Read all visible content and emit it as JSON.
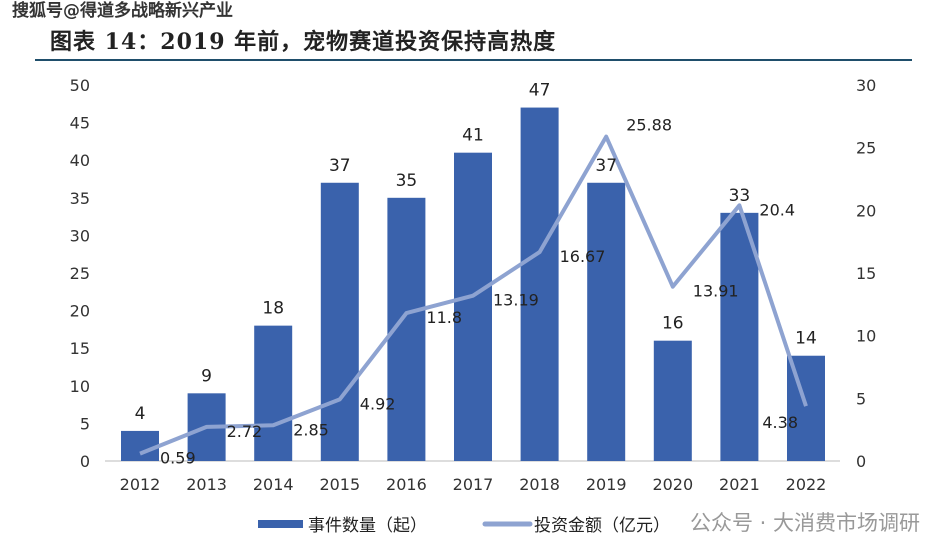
{
  "watermarks": {
    "top": "搜狐号@得道多战略新兴产业",
    "bottom": "公众号 · 大消费市场调研"
  },
  "chart_data": {
    "type": "bar+line",
    "title": "图表 14：2019 年前，宠物赛道投资保持高热度",
    "categories": [
      "2012",
      "2013",
      "2014",
      "2015",
      "2016",
      "2017",
      "2018",
      "2019",
      "2020",
      "2021",
      "2022"
    ],
    "series": [
      {
        "name": "事件数量（起）",
        "type": "bar",
        "axis": "left",
        "color": "#3a62ac",
        "values": [
          4,
          9,
          18,
          37,
          35,
          41,
          47,
          37,
          16,
          33,
          14
        ]
      },
      {
        "name": "投资金额（亿元）",
        "type": "line",
        "axis": "right",
        "color": "#8ea3d1",
        "values": [
          0.59,
          2.72,
          2.85,
          4.92,
          11.8,
          13.19,
          16.67,
          25.88,
          13.91,
          20.4,
          4.38
        ]
      }
    ],
    "left_axis": {
      "min": 0,
      "max": 50,
      "ticks": [
        0,
        5,
        10,
        15,
        20,
        25,
        30,
        35,
        40,
        45,
        50
      ]
    },
    "right_axis": {
      "min": 0,
      "max": 30,
      "ticks": [
        0,
        5,
        10,
        15,
        20,
        25,
        30
      ]
    },
    "bar_labels": [
      "4",
      "9",
      "18",
      "37",
      "35",
      "41",
      "47",
      "37",
      "16",
      "33",
      "14"
    ],
    "line_labels": [
      "0.59",
      "2.72",
      "2.85",
      "4.92",
      "11.8",
      "13.19",
      "16.67",
      "25.88",
      "13.91",
      "20.4",
      "4.38"
    ],
    "grid": false,
    "legend": "bottom"
  }
}
